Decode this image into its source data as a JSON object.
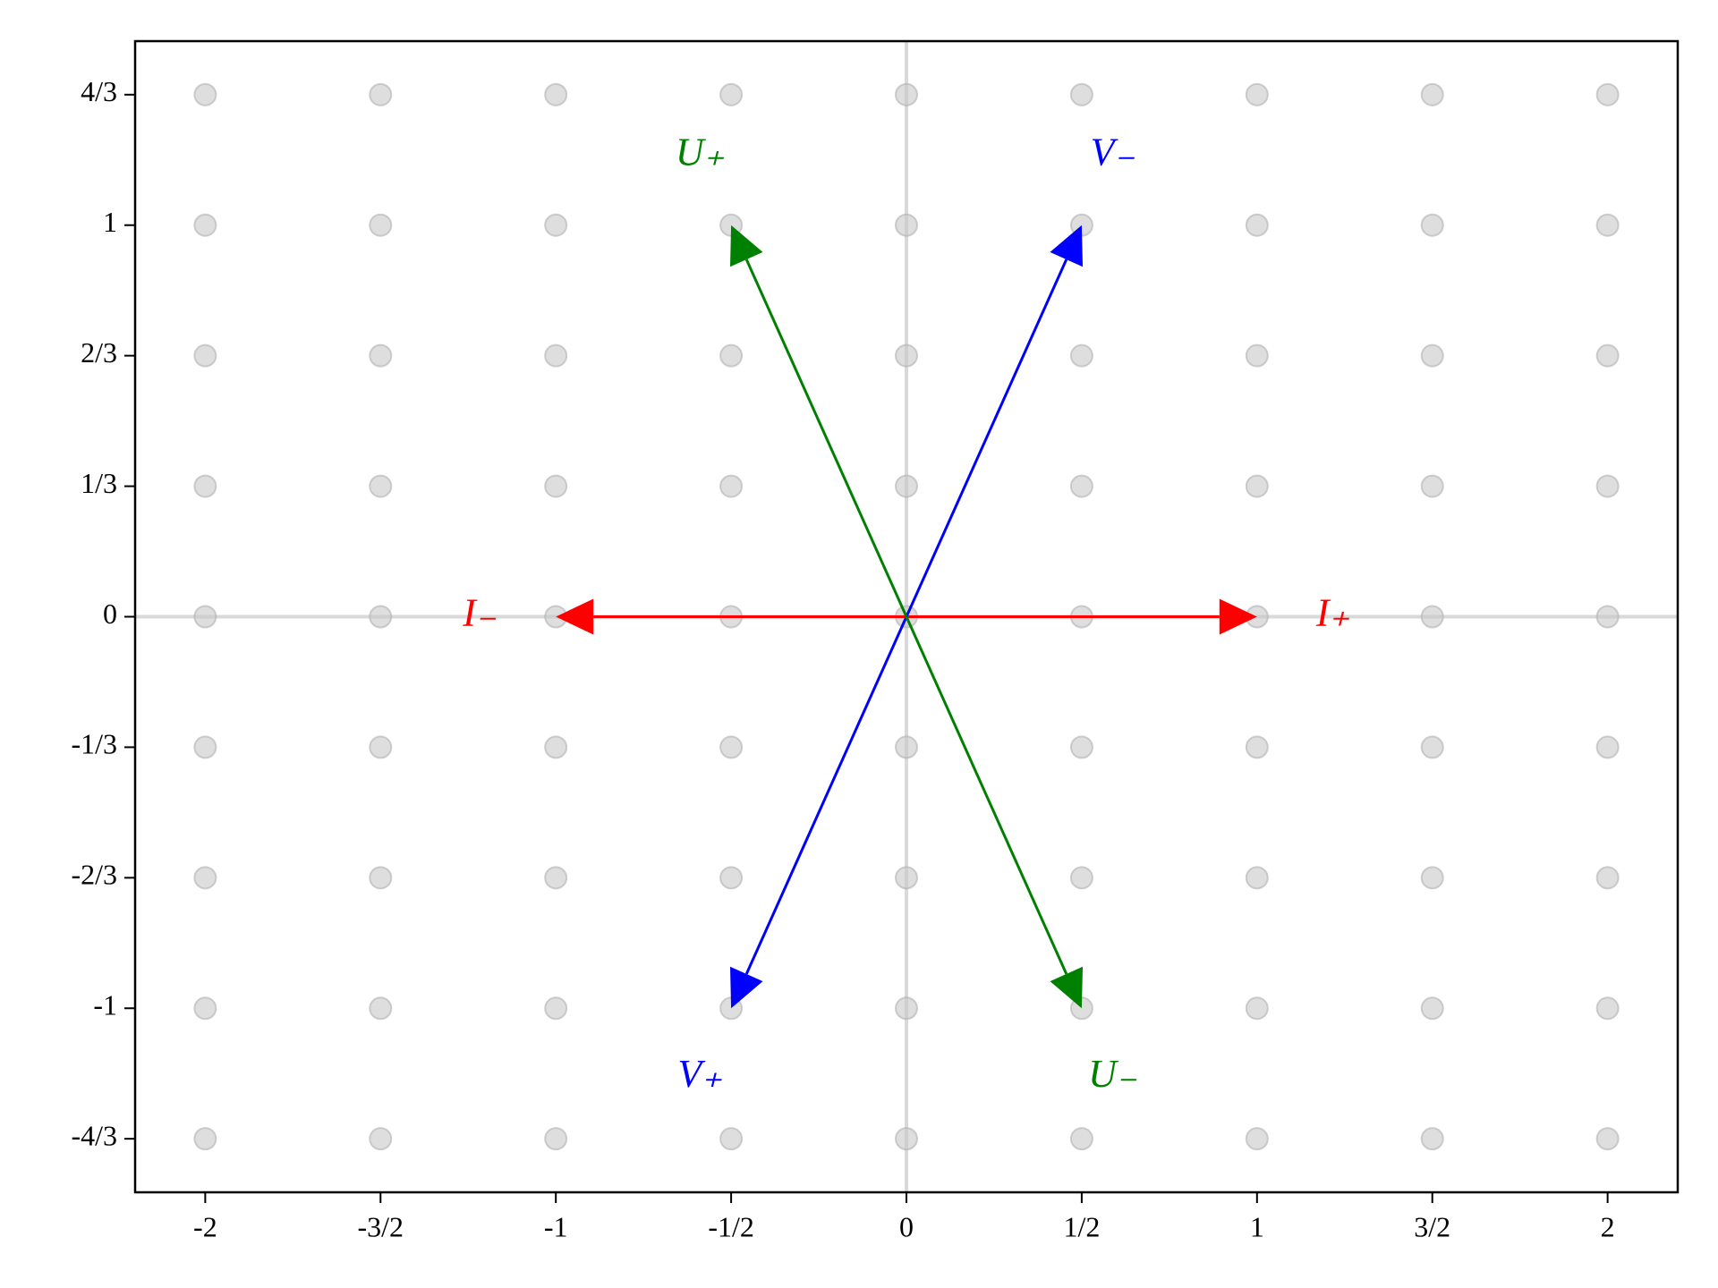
{
  "chart_data": {
    "type": "quiver",
    "xlim": [
      -2.2,
      2.2
    ],
    "ylim": [
      -1.47,
      1.47
    ],
    "xticks": [
      -2,
      {
        "value": -1.5,
        "label": "-3/2"
      },
      -1,
      {
        "value": -0.5,
        "label": "-1/2"
      },
      0,
      {
        "value": 0.5,
        "label": "1/2"
      },
      1,
      {
        "value": 1.5,
        "label": "3/2"
      },
      2
    ],
    "yticks": [
      {
        "value": -1.3333,
        "label": "-4/3"
      },
      -1,
      {
        "value": -0.6667,
        "label": "-2/3"
      },
      {
        "value": -0.3333,
        "label": "-1/3"
      },
      0,
      {
        "value": 0.3333,
        "label": "1/3"
      },
      {
        "value": 0.6667,
        "label": "2/3"
      },
      1,
      {
        "value": 1.3333,
        "label": "4/3"
      }
    ],
    "lattice": {
      "color": "#c8c8c8",
      "x": [
        -2,
        -1.5,
        -1,
        -0.5,
        0,
        0.5,
        1,
        1.5,
        2
      ],
      "y": [
        -1.3333,
        -1,
        -0.6667,
        -0.3333,
        0,
        0.3333,
        0.6667,
        1,
        1.3333
      ]
    },
    "zero_lines": true,
    "series": [
      {
        "name": "I₊",
        "color": "#ff0000",
        "x": 1,
        "y": 0
      },
      {
        "name": "I₋",
        "color": "#ff0000",
        "x": -1,
        "y": 0
      },
      {
        "name": "V₋",
        "color": "#0000ff",
        "x": 0.5,
        "y": 1
      },
      {
        "name": "V₊",
        "color": "#0000ff",
        "x": -0.5,
        "y": -1
      },
      {
        "name": "U₊",
        "color": "#008000",
        "x": -0.5,
        "y": 1
      },
      {
        "name": "U₋",
        "color": "#008000",
        "x": 0.5,
        "y": -1
      }
    ]
  }
}
